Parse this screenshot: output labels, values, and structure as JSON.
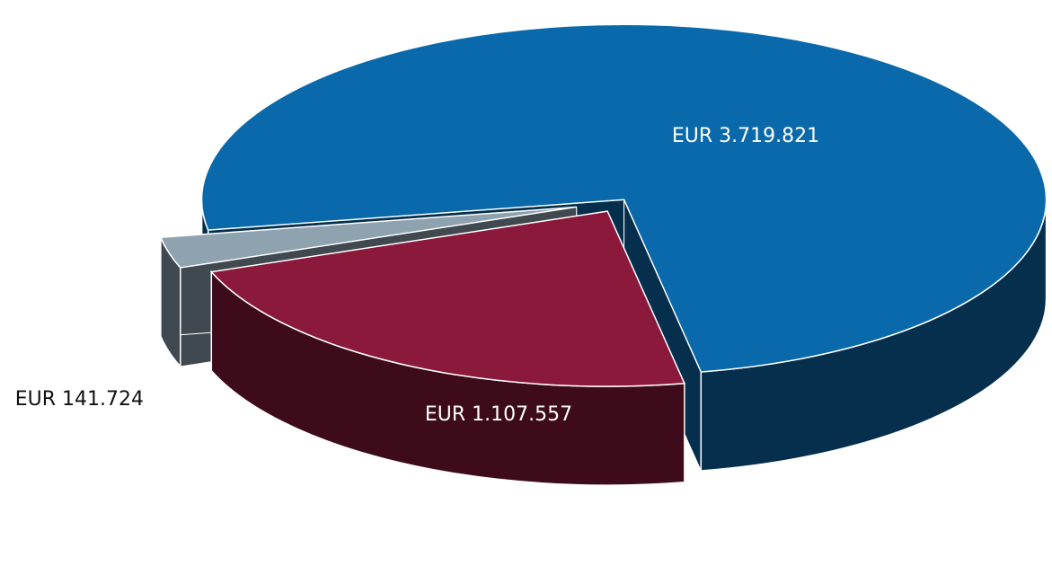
{
  "chart_data": {
    "type": "pie",
    "values": [
      3719821,
      1107557,
      141724
    ],
    "value_labels": [
      "EUR 3.719.821",
      "EUR 1.107.557",
      "EUR 141.724"
    ],
    "colors": [
      "#0a69aa",
      "#8a193c",
      "#8fa2b0"
    ]
  }
}
